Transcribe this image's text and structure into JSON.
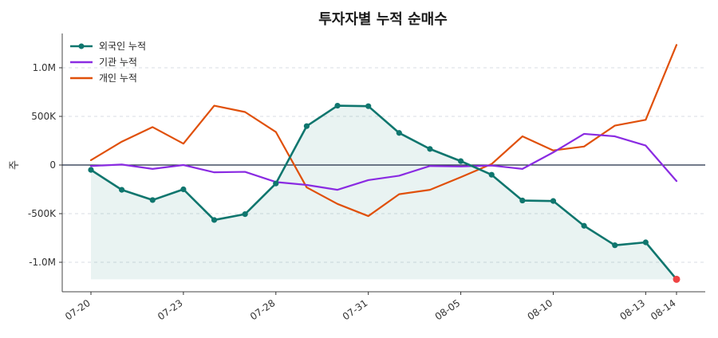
{
  "chart_data": {
    "type": "line",
    "title": "투자자별 누적 순매수",
    "ylabel": "주",
    "xlabel": "",
    "ylim": [
      -1180000,
      1300000
    ],
    "yticks": [
      {
        "value": 1000000,
        "label": "1.0M"
      },
      {
        "value": 500000,
        "label": "500K"
      },
      {
        "value": 0,
        "label": "0"
      },
      {
        "value": -500000,
        "label": "-500K"
      },
      {
        "value": -1000000,
        "label": "-1.0M"
      }
    ],
    "x": [
      "07-20",
      "07-21",
      "07-22",
      "07-23",
      "07-24",
      "07-27",
      "07-28",
      "07-29",
      "07-30",
      "07-31",
      "08-03",
      "08-04",
      "08-05",
      "08-06",
      "08-07",
      "08-10",
      "08-11",
      "08-12",
      "08-13",
      "08-14"
    ],
    "xticks": [
      {
        "index": 0,
        "label": "07-20"
      },
      {
        "index": 3,
        "label": "07-23"
      },
      {
        "index": 6,
        "label": "07-28"
      },
      {
        "index": 9,
        "label": "07-31"
      },
      {
        "index": 12,
        "label": "08-05"
      },
      {
        "index": 15,
        "label": "08-10"
      },
      {
        "index": 18,
        "label": "08-13"
      },
      {
        "index": 19,
        "label": "08-14"
      }
    ],
    "grid": true,
    "legend_position": "top-left",
    "series": [
      {
        "name": "외국인 누적",
        "color": "#0f766e",
        "markers": true,
        "fill": true,
        "values": [
          -50000,
          -255000,
          -360000,
          -250000,
          -565000,
          -505000,
          -190000,
          400000,
          610000,
          605000,
          330000,
          165000,
          40000,
          -100000,
          -365000,
          -370000,
          -625000,
          -825000,
          -795000,
          -1175000
        ]
      },
      {
        "name": "기관 누적",
        "color": "#8a2be2",
        "markers": false,
        "fill": false,
        "values": [
          -10000,
          5000,
          -40000,
          0,
          -75000,
          -70000,
          -175000,
          -205000,
          -255000,
          -155000,
          -110000,
          -10000,
          -15000,
          -5000,
          -40000,
          130000,
          320000,
          295000,
          200000,
          -165000
        ]
      },
      {
        "name": "개인 누적",
        "color": "#e0500a",
        "markers": false,
        "fill": false,
        "values": [
          50000,
          240000,
          390000,
          220000,
          610000,
          545000,
          340000,
          -230000,
          -400000,
          -525000,
          -300000,
          -255000,
          -125000,
          10000,
          295000,
          150000,
          190000,
          405000,
          465000,
          1235000
        ]
      }
    ],
    "last_point_highlight_color": "#ef4444"
  }
}
